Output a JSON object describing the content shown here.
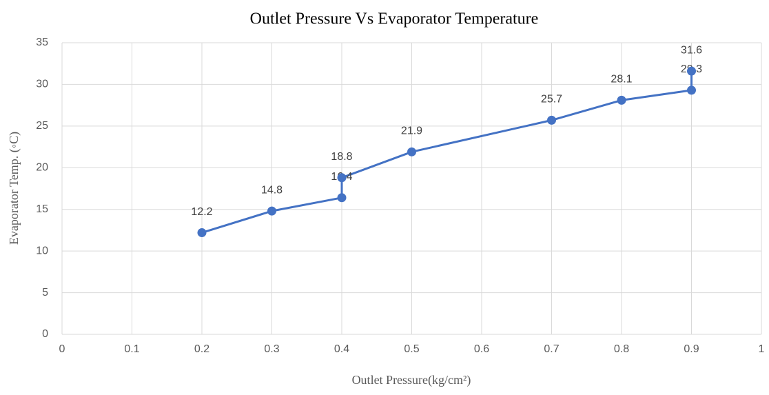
{
  "chart_data": {
    "type": "line",
    "title": "Outlet Pressure Vs Evaporator Temperature",
    "x_label": "Outlet Pressure(kg/cm²)",
    "y_label": "Evaporator Temp. (◦C)",
    "x": [
      0.2,
      0.3,
      0.4,
      0.4,
      0.5,
      0.7,
      0.8,
      0.9,
      0.9
    ],
    "values": [
      12.2,
      14.8,
      16.4,
      18.8,
      21.9,
      25.7,
      28.1,
      29.3,
      31.6
    ],
    "color": "#4472c4",
    "xlim": [
      0,
      1
    ],
    "xticks": [
      0,
      0.1,
      0.2,
      0.3,
      0.4,
      0.5,
      0.6,
      0.7,
      0.8,
      0.9,
      1
    ],
    "ylim": [
      0,
      35
    ],
    "yticks": [
      0,
      5,
      10,
      15,
      20,
      25,
      30,
      35
    ],
    "grid": true
  }
}
